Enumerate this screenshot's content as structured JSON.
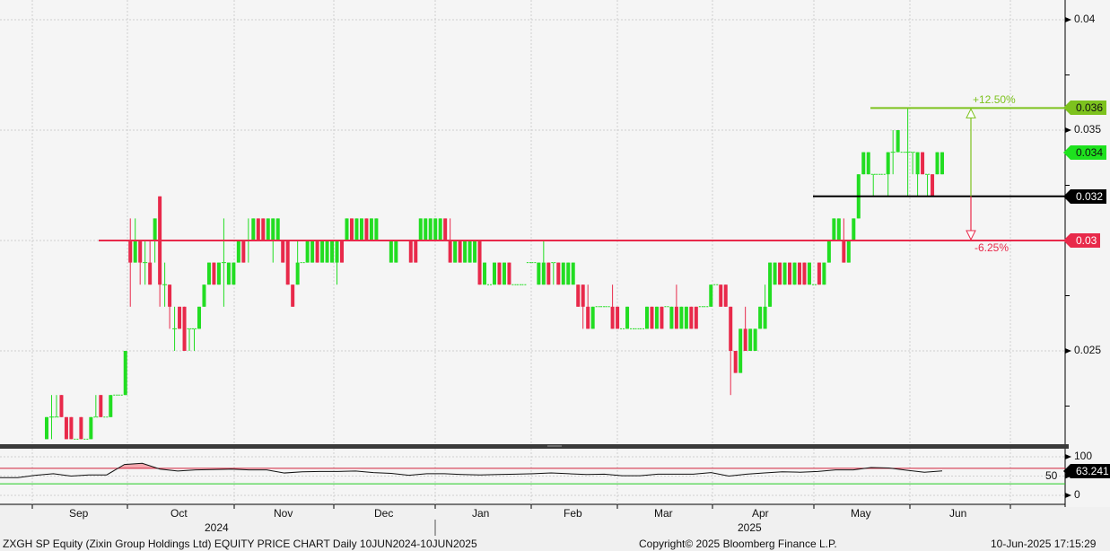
{
  "chart_data": {
    "type": "candlestick",
    "ticker": "ZXGH SP Equity",
    "y_axis": {
      "ticks": [
        "0.04",
        "0.035",
        "0.025"
      ],
      "ylim": [
        0.0208,
        0.0411
      ]
    },
    "x_axis": {
      "months": [
        "Sep",
        "Oct",
        "Nov",
        "Dec",
        "Jan",
        "Feb",
        "Mar",
        "Apr",
        "May",
        "Jun"
      ],
      "years": [
        "2024",
        "2025"
      ]
    },
    "grid": true,
    "colors": {
      "up": "#22dd22",
      "down": "#e8294a",
      "background": "#f5f5f5"
    },
    "ohlc": [
      [
        0.021,
        0.022,
        0.021,
        0.022
      ],
      [
        0.022,
        0.023,
        0.021,
        0.022
      ],
      [
        0.022,
        0.023,
        0.022,
        0.022
      ],
      [
        0.023,
        0.023,
        0.022,
        0.022
      ],
      [
        0.022,
        0.022,
        0.021,
        0.021
      ],
      [
        0.022,
        0.022,
        0.021,
        0.021
      ],
      [
        0.021,
        0.021,
        0.021,
        0.021
      ],
      [
        0.022,
        0.022,
        0.021,
        0.021
      ],
      [
        0.021,
        0.021,
        0.021,
        0.021
      ],
      [
        0.021,
        0.022,
        0.021,
        0.022
      ],
      [
        0.022,
        0.023,
        0.022,
        0.022
      ],
      [
        0.023,
        0.023,
        0.022,
        0.022
      ],
      [
        0.022,
        0.022,
        0.022,
        0.022
      ],
      [
        0.022,
        0.023,
        0.022,
        0.023
      ],
      [
        0.023,
        0.023,
        0.023,
        0.023
      ],
      [
        0.023,
        0.023,
        0.023,
        0.023
      ],
      [
        0.023,
        0.025,
        0.023,
        0.025
      ],
      [
        0.03,
        0.031,
        0.027,
        0.029
      ],
      [
        0.029,
        0.031,
        0.029,
        0.03
      ],
      [
        0.03,
        0.03,
        0.028,
        0.029
      ],
      [
        0.029,
        0.03,
        0.028,
        0.029
      ],
      [
        0.029,
        0.03,
        0.028,
        0.028
      ],
      [
        0.03,
        0.031,
        0.029,
        0.031
      ],
      [
        0.032,
        0.032,
        0.027,
        0.028
      ],
      [
        0.028,
        0.029,
        0.027,
        0.028
      ],
      [
        0.028,
        0.028,
        0.026,
        0.027
      ],
      [
        0.026,
        0.027,
        0.025,
        0.026
      ],
      [
        0.027,
        0.027,
        0.026,
        0.026
      ],
      [
        0.027,
        0.027,
        0.025,
        0.025
      ],
      [
        0.026,
        0.026,
        0.025,
        0.026
      ],
      [
        0.026,
        0.026,
        0.025,
        0.026
      ],
      [
        0.026,
        0.027,
        0.026,
        0.027
      ],
      [
        0.027,
        0.028,
        0.027,
        0.028
      ],
      [
        0.028,
        0.029,
        0.028,
        0.029
      ],
      [
        0.029,
        0.029,
        0.028,
        0.028
      ],
      [
        0.028,
        0.029,
        0.028,
        0.029
      ],
      [
        0.029,
        0.031,
        0.027,
        0.029
      ],
      [
        0.028,
        0.029,
        0.028,
        0.029
      ],
      [
        0.028,
        0.029,
        0.028,
        0.029
      ],
      [
        0.029,
        0.03,
        0.029,
        0.03
      ],
      [
        0.03,
        0.03,
        0.029,
        0.029
      ],
      [
        0.03,
        0.031,
        0.029,
        0.03
      ],
      [
        0.03,
        0.031,
        0.03,
        0.031
      ],
      [
        0.031,
        0.031,
        0.03,
        0.03
      ],
      [
        0.031,
        0.031,
        0.03,
        0.03
      ],
      [
        0.03,
        0.031,
        0.03,
        0.031
      ],
      [
        0.03,
        0.031,
        0.029,
        0.031
      ],
      [
        0.03,
        0.031,
        0.03,
        0.031
      ],
      [
        0.03,
        0.03,
        0.029,
        0.029
      ],
      [
        0.03,
        0.03,
        0.028,
        0.028
      ],
      [
        0.028,
        0.028,
        0.027,
        0.027
      ],
      [
        0.028,
        0.03,
        0.028,
        0.029
      ],
      [
        0.029,
        0.029,
        0.029,
        0.029
      ],
      [
        0.029,
        0.03,
        0.029,
        0.03
      ],
      [
        0.029,
        0.03,
        0.029,
        0.03
      ],
      [
        0.03,
        0.03,
        0.029,
        0.029
      ],
      [
        0.029,
        0.03,
        0.029,
        0.03
      ],
      [
        0.029,
        0.03,
        0.029,
        0.03
      ],
      [
        0.029,
        0.03,
        0.029,
        0.03
      ],
      [
        0.029,
        0.03,
        0.028,
        0.03
      ],
      [
        0.03,
        0.03,
        0.029,
        0.029
      ],
      [
        0.03,
        0.031,
        0.03,
        0.031
      ],
      [
        0.031,
        0.031,
        0.03,
        0.03
      ],
      [
        0.03,
        0.031,
        0.03,
        0.031
      ],
      [
        0.03,
        0.031,
        0.03,
        0.031
      ],
      [
        0.031,
        0.031,
        0.03,
        0.03
      ],
      [
        0.03,
        0.031,
        0.03,
        0.031
      ],
      [
        0.03,
        0.031,
        0.03,
        0.031
      ],
      [
        0.03,
        0.03,
        0.03,
        0.03
      ],
      [
        0.03,
        0.03,
        0.03,
        0.03
      ],
      [
        0.029,
        0.03,
        0.029,
        0.03
      ],
      [
        0.029,
        0.03,
        0.029,
        0.03
      ],
      [
        0.03,
        0.03,
        0.03,
        0.03
      ],
      [
        0.03,
        0.03,
        0.03,
        0.03
      ],
      [
        0.03,
        0.03,
        0.029,
        0.029
      ],
      [
        0.03,
        0.03,
        0.029,
        0.029
      ],
      [
        0.03,
        0.031,
        0.03,
        0.031
      ],
      [
        0.03,
        0.031,
        0.03,
        0.031
      ],
      [
        0.03,
        0.031,
        0.03,
        0.031
      ],
      [
        0.03,
        0.031,
        0.03,
        0.031
      ],
      [
        0.03,
        0.031,
        0.03,
        0.031
      ],
      [
        0.031,
        0.031,
        0.03,
        0.03
      ],
      [
        0.03,
        0.031,
        0.029,
        0.029
      ],
      [
        0.029,
        0.03,
        0.029,
        0.03
      ],
      [
        0.03,
        0.03,
        0.029,
        0.029
      ],
      [
        0.029,
        0.03,
        0.029,
        0.03
      ],
      [
        0.029,
        0.03,
        0.029,
        0.03
      ],
      [
        0.029,
        0.03,
        0.029,
        0.03
      ],
      [
        0.03,
        0.03,
        0.028,
        0.028
      ],
      [
        0.028,
        0.029,
        0.028,
        0.029
      ],
      [
        0.028,
        0.028,
        0.028,
        0.028
      ],
      [
        0.028,
        0.029,
        0.028,
        0.029
      ],
      [
        0.029,
        0.029,
        0.028,
        0.028
      ],
      [
        0.028,
        0.029,
        0.028,
        0.029
      ],
      [
        0.029,
        0.029,
        0.028,
        0.028
      ],
      [
        0.028,
        0.028,
        0.028,
        0.028
      ],
      [
        0.028,
        0.028,
        0.028,
        0.028
      ],
      [
        0.028,
        0.028,
        0.028,
        0.028
      ],
      [
        0.029,
        0.029,
        0.029,
        0.029
      ],
      [
        0.029,
        0.029,
        0.029,
        0.029
      ],
      [
        0.028,
        0.029,
        0.028,
        0.029
      ],
      [
        0.028,
        0.03,
        0.028,
        0.029
      ],
      [
        0.029,
        0.029,
        0.028,
        0.028
      ],
      [
        0.029,
        0.029,
        0.028,
        0.029
      ],
      [
        0.029,
        0.029,
        0.028,
        0.028
      ],
      [
        0.028,
        0.029,
        0.028,
        0.029
      ],
      [
        0.028,
        0.029,
        0.028,
        0.029
      ],
      [
        0.028,
        0.029,
        0.028,
        0.029
      ],
      [
        0.028,
        0.028,
        0.027,
        0.027
      ],
      [
        0.028,
        0.028,
        0.026,
        0.027
      ],
      [
        0.027,
        0.028,
        0.026,
        0.026
      ],
      [
        0.026,
        0.027,
        0.026,
        0.027
      ],
      [
        0.027,
        0.027,
        0.027,
        0.027
      ],
      [
        0.027,
        0.027,
        0.027,
        0.027
      ],
      [
        0.027,
        0.027,
        0.027,
        0.027
      ],
      [
        0.027,
        0.028,
        0.026,
        0.026
      ],
      [
        0.027,
        0.027,
        0.026,
        0.026
      ],
      [
        0.026,
        0.026,
        0.026,
        0.026
      ],
      [
        0.026,
        0.027,
        0.026,
        0.027
      ],
      [
        0.026,
        0.026,
        0.026,
        0.026
      ],
      [
        0.026,
        0.026,
        0.026,
        0.026
      ],
      [
        0.026,
        0.026,
        0.026,
        0.026
      ],
      [
        0.026,
        0.027,
        0.026,
        0.027
      ],
      [
        0.027,
        0.027,
        0.026,
        0.026
      ],
      [
        0.026,
        0.027,
        0.026,
        0.027
      ],
      [
        0.027,
        0.027,
        0.026,
        0.026
      ],
      [
        0.027,
        0.027,
        0.027,
        0.027
      ],
      [
        0.026,
        0.027,
        0.026,
        0.027
      ],
      [
        0.027,
        0.028,
        0.026,
        0.026
      ],
      [
        0.026,
        0.027,
        0.026,
        0.027
      ],
      [
        0.026,
        0.027,
        0.026,
        0.027
      ],
      [
        0.027,
        0.027,
        0.026,
        0.026
      ],
      [
        0.027,
        0.027,
        0.026,
        0.026
      ],
      [
        0.027,
        0.027,
        0.027,
        0.027
      ],
      [
        0.027,
        0.027,
        0.027,
        0.027
      ],
      [
        0.027,
        0.028,
        0.027,
        0.028
      ],
      [
        0.028,
        0.028,
        0.028,
        0.028
      ],
      [
        0.028,
        0.028,
        0.027,
        0.027
      ],
      [
        0.028,
        0.028,
        0.027,
        0.027
      ],
      [
        0.027,
        0.027,
        0.023,
        0.025
      ],
      [
        0.025,
        0.025,
        0.024,
        0.024
      ],
      [
        0.024,
        0.026,
        0.024,
        0.026
      ],
      [
        0.026,
        0.027,
        0.025,
        0.025
      ],
      [
        0.025,
        0.026,
        0.025,
        0.026
      ],
      [
        0.025,
        0.026,
        0.025,
        0.026
      ],
      [
        0.026,
        0.027,
        0.026,
        0.027
      ],
      [
        0.026,
        0.028,
        0.026,
        0.027
      ],
      [
        0.027,
        0.029,
        0.027,
        0.029
      ],
      [
        0.028,
        0.029,
        0.028,
        0.029
      ],
      [
        0.029,
        0.029,
        0.028,
        0.028
      ],
      [
        0.028,
        0.029,
        0.028,
        0.029
      ],
      [
        0.029,
        0.029,
        0.028,
        0.028
      ],
      [
        0.028,
        0.029,
        0.028,
        0.029
      ],
      [
        0.029,
        0.029,
        0.028,
        0.028
      ],
      [
        0.029,
        0.029,
        0.028,
        0.028
      ],
      [
        0.028,
        0.029,
        0.028,
        0.029
      ],
      [
        0.028,
        0.028,
        0.028,
        0.028
      ],
      [
        0.029,
        0.029,
        0.028,
        0.028
      ],
      [
        0.028,
        0.029,
        0.028,
        0.029
      ],
      [
        0.029,
        0.03,
        0.029,
        0.03
      ],
      [
        0.03,
        0.031,
        0.03,
        0.031
      ],
      [
        0.03,
        0.031,
        0.03,
        0.031
      ],
      [
        0.03,
        0.031,
        0.029,
        0.029
      ],
      [
        0.029,
        0.03,
        0.029,
        0.03
      ],
      [
        0.03,
        0.031,
        0.03,
        0.031
      ],
      [
        0.031,
        0.033,
        0.031,
        0.033
      ],
      [
        0.033,
        0.034,
        0.033,
        0.034
      ],
      [
        0.033,
        0.034,
        0.033,
        0.034
      ],
      [
        0.033,
        0.033,
        0.032,
        0.033
      ],
      [
        0.033,
        0.033,
        0.033,
        0.033
      ],
      [
        0.033,
        0.033,
        0.033,
        0.033
      ],
      [
        0.033,
        0.034,
        0.032,
        0.034
      ],
      [
        0.034,
        0.035,
        0.033,
        0.034
      ],
      [
        0.034,
        0.035,
        0.034,
        0.035
      ],
      [
        0.034,
        0.034,
        0.034,
        0.034
      ],
      [
        0.034,
        0.036,
        0.032,
        0.034
      ],
      [
        0.034,
        0.034,
        0.033,
        0.034
      ],
      [
        0.033,
        0.034,
        0.032,
        0.034
      ],
      [
        0.034,
        0.034,
        0.033,
        0.033
      ],
      [
        0.033,
        0.033,
        0.032,
        0.033
      ],
      [
        0.033,
        0.033,
        0.032,
        0.032
      ],
      [
        0.033,
        0.034,
        0.033,
        0.034
      ],
      [
        0.033,
        0.034,
        0.033,
        0.034
      ]
    ],
    "levels": [
      {
        "value": 0.036,
        "label": "0.036",
        "color": "#7dc21e",
        "text_color": "#111111"
      },
      {
        "value": 0.032,
        "label": "0.032",
        "color": "#000000",
        "text_color": "#ffffff"
      },
      {
        "value": 0.03,
        "label": "0.03",
        "color": "#e8294a",
        "text_color": "#ffffff"
      }
    ],
    "last_price": {
      "value": 0.034,
      "label": "0.034",
      "color": "#1ee21e"
    },
    "measure": {
      "up_label": "+12.50%",
      "down_label": "-6.25%"
    },
    "rsi": {
      "axis_ticks": [
        "100",
        "50",
        "0"
      ],
      "upper": 70,
      "lower": 30,
      "last_label": "63.241",
      "values": [
        46,
        46,
        52,
        56,
        50,
        53,
        53,
        80,
        83,
        68,
        63,
        66,
        67,
        68,
        66,
        66,
        58,
        61,
        62,
        62,
        63,
        59,
        57,
        52,
        56,
        56,
        54,
        53,
        54,
        55,
        56,
        58,
        56,
        54,
        55,
        51,
        51,
        55,
        55,
        55,
        59,
        50,
        55,
        58,
        61,
        60,
        62,
        66,
        66,
        72,
        71,
        65,
        60,
        63.241
      ]
    }
  },
  "footer": {
    "title": "ZXGH SP Equity (Zixin Group Holdings Ltd) EQUITY PRICE CHART  Daily 10JUN2024-10JUN2025",
    "copyright": "Copyright© 2025 Bloomberg Finance L.P.",
    "timestamp": "10-Jun-2025 17:15:29"
  }
}
